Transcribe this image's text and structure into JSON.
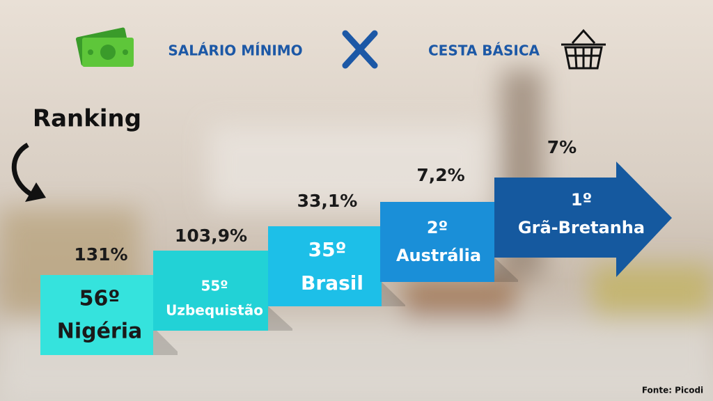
{
  "header": {
    "left_label": "SALÁRIO MÍNIMO",
    "right_label": "CESTA BÁSICA"
  },
  "ranking_label": "Ranking",
  "steps": [
    {
      "rank": "56º",
      "country": "Nigéria",
      "percent": "131%"
    },
    {
      "rank": "55º",
      "country": "Uzbequistão",
      "percent": "103,9%"
    },
    {
      "rank": "35º",
      "country": "Brasil",
      "percent": "33,1%"
    },
    {
      "rank": "2º",
      "country": "Austrália",
      "percent": "7,2%"
    },
    {
      "rank": "1º",
      "country": "Grã-Bretanha",
      "percent": "7%"
    }
  ],
  "source": "Fonte: Picodi"
}
